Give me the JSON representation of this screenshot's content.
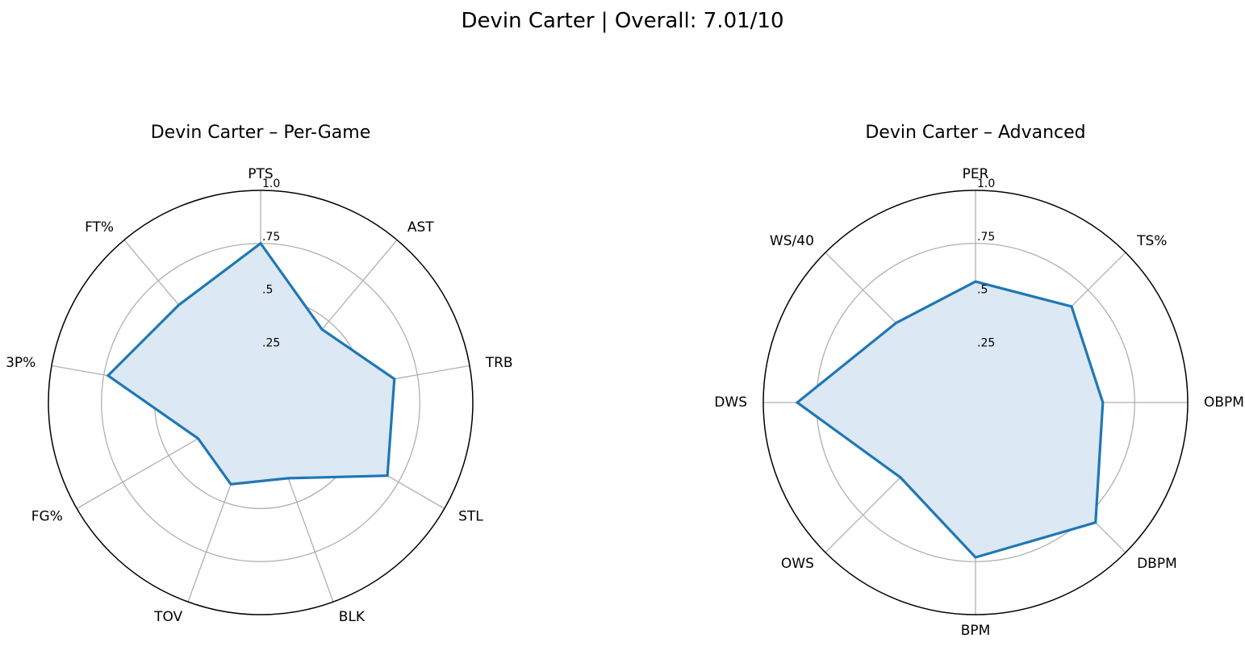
{
  "figure": {
    "suptitle": "Devin Carter | Overall: 7.01/10"
  },
  "chart_data": [
    {
      "type": "radar",
      "title": "Devin Carter – Per-Game",
      "categories": [
        "PTS",
        "AST",
        "TRB",
        "STL",
        "BLK",
        "TOV",
        "FG%",
        "3P%",
        "FT%"
      ],
      "values": [
        0.75,
        0.45,
        0.64,
        0.69,
        0.38,
        0.41,
        0.34,
        0.73,
        0.6
      ],
      "rlim": [
        0,
        1.0
      ],
      "rticks": [
        ".25",
        ".5",
        ".75",
        "1.0"
      ],
      "grid": true,
      "line_color": "#1f77b4",
      "fill_color": "#dce8f3"
    },
    {
      "type": "radar",
      "title": "Devin Carter – Advanced",
      "categories": [
        "PER",
        "TS%",
        "OBPM",
        "DBPM",
        "BPM",
        "OWS",
        "DWS",
        "WS/40"
      ],
      "values": [
        0.57,
        0.64,
        0.6,
        0.8,
        0.73,
        0.5,
        0.84,
        0.53
      ],
      "rlim": [
        0,
        1.0
      ],
      "rticks": [
        ".25",
        ".5",
        ".75",
        "1.0"
      ],
      "grid": true,
      "line_color": "#1f77b4",
      "fill_color": "#dce8f3"
    }
  ]
}
